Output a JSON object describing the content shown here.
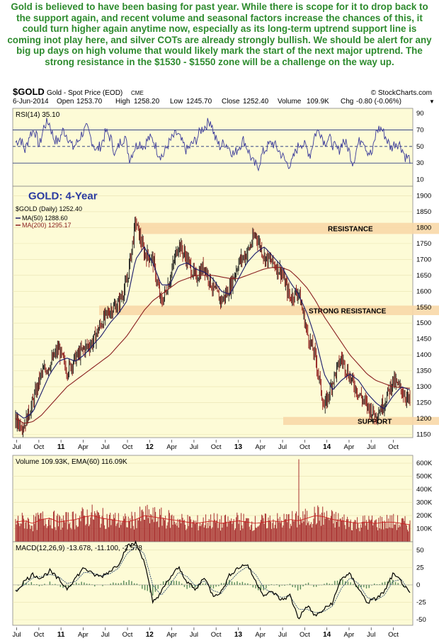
{
  "caption": "Gold is believed to have been basing for past year. While there is scope for it to drop back to the support again, and recent volume and seasonal factors increase the chances of this, it could turn higher again anytime now, especially as its long-term uptrend support line is coming inot play here, and silver COTs are already strongly bullish. We should be alert for any big up days on high volume that would likely mark the start of the next major uptrend. The strong resistance in the $1530 - $1550 zone will be a challenge on the way up.",
  "colors": {
    "panel_bg": "#fdfbd6",
    "caption": "#2e8b2e",
    "band": "#f8d8a8",
    "rsi": "#3a3a9a",
    "ma50": "#1a1a6a",
    "ma200": "#8a2020",
    "volume": "#a83030",
    "ema": "#cc2020",
    "macd": "#000000",
    "signal": "#1a3a6a",
    "hist": "#5a8a5a"
  },
  "chart_data": {
    "type": "line",
    "header": {
      "symbol": "$GOLD",
      "name": "Gold - Spot Price (EOD)",
      "exchange": "CME",
      "source": "© StockCharts.com",
      "date": "6-Jun-2014",
      "open_label": "Open",
      "open": "1253.70",
      "high_label": "High",
      "high": "1258.20",
      "low_label": "Low",
      "low": "1245.70",
      "close_label": "Close",
      "close": "1252.40",
      "volume_label": "Volume",
      "volume": "109.9K",
      "chg_label": "Chg",
      "chg": "-0.80 (-0.06%)"
    },
    "title": "GOLD: 4-Year",
    "x_ticks": [
      "Jul",
      "Oct",
      "11",
      "Apr",
      "Jul",
      "Oct",
      "12",
      "Apr",
      "Jul",
      "Oct",
      "13",
      "Apr",
      "Jul",
      "Oct",
      "14",
      "Apr",
      "Jul",
      "Oct"
    ],
    "rsi": {
      "legend": "RSI(14) 35.10",
      "y_ticks": [
        90,
        70,
        50,
        30,
        10
      ],
      "levels": [
        70,
        50,
        30
      ],
      "values": [
        55,
        60,
        45,
        65,
        70,
        50,
        75,
        80,
        60,
        55,
        70,
        62,
        48,
        55,
        66,
        72,
        58,
        45,
        52,
        68,
        60,
        40,
        55,
        62,
        35,
        48,
        55,
        50,
        60,
        58,
        42,
        38,
        52,
        60,
        66,
        55,
        45,
        52,
        58,
        70,
        75,
        82,
        60,
        50,
        55,
        48,
        40,
        50,
        58,
        45,
        30,
        25,
        42,
        50,
        55,
        48,
        40,
        30,
        28,
        45,
        55,
        50,
        40,
        65,
        70,
        55,
        60,
        50,
        45,
        58,
        48,
        30,
        52,
        62,
        45,
        40,
        70,
        72,
        60,
        48,
        55,
        52,
        38,
        35
      ]
    },
    "price": {
      "legend_price": "$GOLD (Daily) 1252.40",
      "legend_ma50": "MA(50) 1288.60",
      "legend_ma200": "MA(200) 1295.17",
      "y_ticks": [
        1900,
        1850,
        1800,
        1750,
        1700,
        1650,
        1600,
        1550,
        1500,
        1450,
        1400,
        1350,
        1300,
        1250,
        1200,
        1150
      ],
      "ylim": [
        1140,
        1930
      ],
      "annotations": [
        {
          "label": "RESISTANCE",
          "low": 1780,
          "high": 1815
        },
        {
          "label": "STRONG RESISTANCE",
          "low": 1525,
          "high": 1555
        },
        {
          "label": "SUPPORT",
          "low": 1180,
          "high": 1205
        }
      ],
      "monthly_close": [
        1190,
        1180,
        1250,
        1340,
        1370,
        1420,
        1350,
        1390,
        1420,
        1440,
        1500,
        1540,
        1560,
        1630,
        1820,
        1720,
        1700,
        1560,
        1640,
        1750,
        1700,
        1640,
        1680,
        1610,
        1570,
        1610,
        1690,
        1720,
        1780,
        1710,
        1690,
        1660,
        1580,
        1600,
        1470,
        1390,
        1230,
        1320,
        1390,
        1330,
        1280,
        1240,
        1210,
        1250,
        1320,
        1290,
        1250
      ],
      "ma50": [
        1220,
        1200,
        1220,
        1280,
        1340,
        1380,
        1390,
        1380,
        1400,
        1430,
        1460,
        1500,
        1530,
        1570,
        1700,
        1740,
        1690,
        1620,
        1620,
        1680,
        1690,
        1670,
        1660,
        1640,
        1600,
        1590,
        1640,
        1690,
        1720,
        1740,
        1710,
        1680,
        1630,
        1590,
        1530,
        1450,
        1340,
        1290,
        1320,
        1340,
        1320,
        1280,
        1250,
        1230,
        1270,
        1300,
        1290
      ],
      "ma200": [
        1200,
        1185,
        1190,
        1210,
        1240,
        1270,
        1300,
        1320,
        1340,
        1360,
        1380,
        1400,
        1430,
        1460,
        1500,
        1540,
        1570,
        1590,
        1610,
        1630,
        1640,
        1650,
        1650,
        1650,
        1645,
        1640,
        1640,
        1650,
        1660,
        1670,
        1675,
        1675,
        1665,
        1640,
        1610,
        1570,
        1520,
        1480,
        1440,
        1400,
        1370,
        1340,
        1320,
        1310,
        1300,
        1297,
        1295
      ]
    },
    "volume": {
      "legend": "Volume 109.93K, EMA(60) 116.09K",
      "y_ticks": [
        "600K",
        "500K",
        "400K",
        "300K",
        "200K",
        "100K"
      ],
      "ylim": [
        0,
        660
      ],
      "monthly": [
        150,
        160,
        140,
        170,
        180,
        150,
        160,
        170,
        190,
        200,
        180,
        170,
        160,
        150,
        170,
        200,
        190,
        180,
        170,
        160,
        150,
        140,
        150,
        160,
        140,
        150,
        160,
        150,
        140,
        150,
        160,
        150,
        170,
        160,
        180,
        200,
        190,
        170,
        160,
        150,
        140,
        150,
        140,
        150,
        150,
        140,
        130
      ],
      "spike_index": 33,
      "spike": 630
    },
    "macd": {
      "legend": "MACD(12,26,9) -13.678, -11.100, -2.578",
      "y_ticks": [
        50,
        25,
        0,
        -25,
        -50
      ],
      "ylim": [
        -58,
        62
      ],
      "values": [
        -10,
        5,
        15,
        10,
        20,
        8,
        -5,
        10,
        25,
        15,
        12,
        20,
        30,
        55,
        60,
        35,
        -25,
        -10,
        10,
        25,
        5,
        -8,
        12,
        -15,
        -10,
        15,
        25,
        30,
        5,
        -15,
        -10,
        -22,
        -15,
        -48,
        -30,
        -45,
        -35,
        -25,
        10,
        15,
        -5,
        -25,
        -20,
        -10,
        15,
        5,
        -14
      ],
      "signal": [
        -8,
        0,
        10,
        12,
        15,
        12,
        2,
        5,
        18,
        17,
        13,
        16,
        24,
        45,
        55,
        45,
        0,
        -15,
        0,
        18,
        12,
        -2,
        6,
        -8,
        -12,
        5,
        18,
        26,
        15,
        -5,
        -12,
        -18,
        -16,
        -35,
        -35,
        -40,
        -38,
        -30,
        -5,
        10,
        2,
        -18,
        -22,
        -15,
        5,
        8,
        -11
      ]
    }
  }
}
